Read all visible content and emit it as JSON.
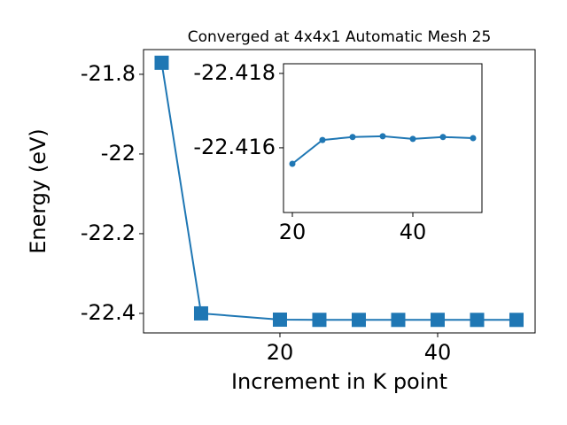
{
  "chart_data": [
    {
      "type": "line",
      "title": "Converged at 4x4x1 Automatic Mesh 25",
      "x_label": "Increment in K point",
      "y_label": "Energy (eV)",
      "x": [
        5,
        10,
        20,
        25,
        30,
        35,
        40,
        45,
        50
      ],
      "series": [
        {
          "color": "#1f77b4",
          "marker": "square",
          "values": [
            -21.771,
            -22.4,
            -22.4157,
            -22.4162,
            -22.4163,
            -22.4163,
            -22.4162,
            -22.4163,
            -22.4163
          ]
        }
      ],
      "xlim": [
        2.7,
        52.36
      ],
      "xticks": [
        20,
        40
      ],
      "ylim": [
        -22.449,
        -21.738
      ],
      "yticks": [
        -21.8,
        -22.0,
        -22.2,
        -22.4
      ]
    },
    {
      "type": "line",
      "x": [
        20,
        25,
        30,
        35,
        40,
        45,
        50
      ],
      "series": [
        {
          "color": "#1f77b4",
          "marker": "circle",
          "values": [
            -22.41557,
            -22.41621,
            -22.41629,
            -22.41631,
            -22.41624,
            -22.41629,
            -22.41626
          ]
        }
      ],
      "xlim": [
        18.53,
        51.47
      ],
      "xticks": [
        20,
        40
      ],
      "ylim": [
        -22.41426,
        -22.41826
      ],
      "yticks": [
        -22.418,
        -22.416
      ]
    }
  ]
}
